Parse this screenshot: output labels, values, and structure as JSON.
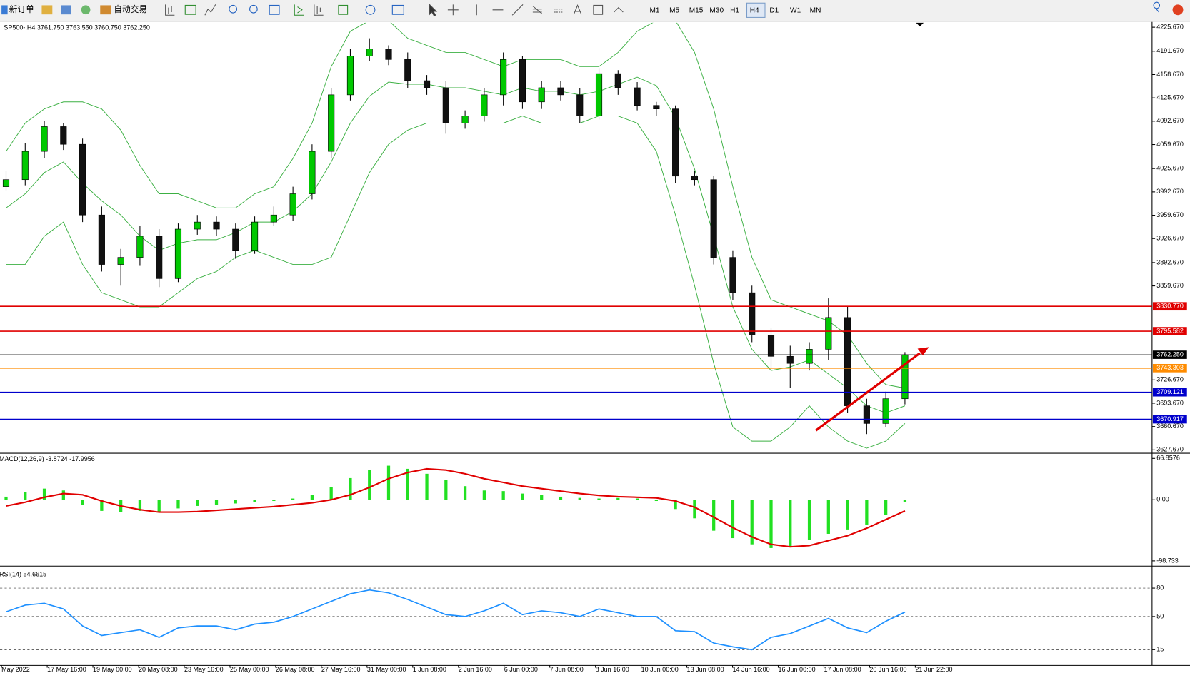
{
  "toolbar": {
    "new_order": "新订单",
    "auto_trading": "自动交易",
    "timeframes": [
      "M1",
      "M5",
      "M15",
      "M30",
      "H1",
      "H4",
      "D1",
      "W1",
      "MN"
    ],
    "active_timeframe": "H4"
  },
  "time_axis": {
    "labels": [
      "May 2022",
      "17 May 16:00",
      "19 May 00:00",
      "20 May 08:00",
      "23 May 16:00",
      "25 May 00:00",
      "26 May 08:00",
      "27 May 16:00",
      "31 May 00:00",
      "1 Jun 08:00",
      "2 Jun 16:00",
      "6 Jun 00:00",
      "7 Jun 08:00",
      "8 Jun 16:00",
      "10 Jun 00:00",
      "13 Jun 08:00",
      "14 Jun 16:00",
      "16 Jun 00:00",
      "17 Jun 08:00",
      "20 Jun 16:00",
      "21 Jun 22:00"
    ]
  },
  "chart_data": [
    {
      "type": "candlestick",
      "title": "SP500-,H4  3761.750 3763.550 3760.750 3762.250",
      "ylim": [
        3624,
        4232
      ],
      "grid": false,
      "up_color": "#00c800",
      "down_color": "#111111",
      "yticks": [
        {
          "value": 4225.67,
          "label": "4225.670"
        },
        {
          "value": 4191.67,
          "label": "4191.670"
        },
        {
          "value": 4158.67,
          "label": "4158.670"
        },
        {
          "value": 4125.67,
          "label": "4125.670"
        },
        {
          "value": 4092.67,
          "label": "4092.670"
        },
        {
          "value": 4059.67,
          "label": "4059.670"
        },
        {
          "value": 4025.67,
          "label": "4025.670"
        },
        {
          "value": 3992.67,
          "label": "3992.670"
        },
        {
          "value": 3959.67,
          "label": "3959.670"
        },
        {
          "value": 3926.67,
          "label": "3926.670"
        },
        {
          "value": 3892.67,
          "label": "3892.670"
        },
        {
          "value": 3859.67,
          "label": "3859.670"
        },
        {
          "value": 3726.67,
          "label": "3726.670"
        },
        {
          "value": 3693.67,
          "label": "3693.670"
        },
        {
          "value": 3660.67,
          "label": "3660.670"
        },
        {
          "value": 3627.67,
          "label": "3627.670"
        }
      ],
      "open": [
        4000,
        4010,
        4050,
        4085,
        4060,
        3960,
        3890,
        3900,
        3930,
        3870,
        3940,
        3950,
        3940,
        3910,
        3950,
        3960,
        3990,
        4050,
        4130,
        4185,
        4195,
        4180,
        4150,
        4140,
        4090,
        4100,
        4130,
        4180,
        4120,
        4140,
        4130,
        4100,
        4160,
        4140,
        4115,
        4110,
        4015,
        4010,
        3900,
        3850,
        3790,
        3760,
        3750,
        3770,
        3815,
        3690,
        3665,
        3700
      ],
      "high": [
        4022,
        4062,
        4093,
        4090,
        4068,
        3972,
        3912,
        3945,
        3940,
        3948,
        3960,
        3958,
        3948,
        3958,
        3972,
        4000,
        4060,
        4140,
        4195,
        4210,
        4200,
        4190,
        4158,
        4150,
        4108,
        4140,
        4190,
        4185,
        4150,
        4150,
        4140,
        4168,
        4165,
        4148,
        4120,
        4115,
        4022,
        4015,
        3910,
        3860,
        3800,
        3775,
        3780,
        3842,
        3830,
        3700,
        3710,
        3766
      ],
      "low": [
        3995,
        4002,
        4040,
        4052,
        3950,
        3880,
        3860,
        3888,
        3858,
        3865,
        3932,
        3930,
        3898,
        3905,
        3945,
        3952,
        3982,
        4040,
        4122,
        4178,
        4172,
        4140,
        4130,
        4075,
        4082,
        4092,
        4115,
        4110,
        4110,
        4122,
        4090,
        4095,
        4130,
        4108,
        4100,
        4005,
        4002,
        3890,
        3840,
        3780,
        3742,
        3715,
        3740,
        3755,
        3680,
        3650,
        3660,
        3692
      ],
      "close": [
        4010,
        4050,
        4085,
        4060,
        3960,
        3890,
        3900,
        3930,
        3870,
        3940,
        3950,
        3940,
        3910,
        3950,
        3960,
        3990,
        4050,
        4130,
        4185,
        4195,
        4180,
        4150,
        4140,
        4090,
        4100,
        4130,
        4180,
        4120,
        4140,
        4130,
        4100,
        4160,
        4140,
        4115,
        4110,
        4015,
        4010,
        3900,
        3850,
        3790,
        3760,
        3750,
        3770,
        3815,
        3690,
        3665,
        3700,
        3762.25
      ],
      "bollinger": {
        "color": "#3cb043",
        "upper": [
          4050,
          4090,
          4110,
          4120,
          4120,
          4110,
          4080,
          4030,
          3990,
          3990,
          3980,
          3970,
          3970,
          3990,
          4000,
          4040,
          4090,
          4170,
          4220,
          4235,
          4235,
          4210,
          4200,
          4190,
          4190,
          4180,
          4170,
          4180,
          4180,
          4180,
          4170,
          4170,
          4190,
          4220,
          4235,
          4235,
          4190,
          4110,
          4000,
          3900,
          3840,
          3830,
          3820,
          3810,
          3790,
          3750,
          3720,
          3715
        ],
        "middle": [
          3970,
          3990,
          4020,
          4035,
          4005,
          3980,
          3960,
          3930,
          3910,
          3920,
          3925,
          3925,
          3935,
          3950,
          3950,
          3965,
          3990,
          4035,
          4090,
          4128,
          4148,
          4145,
          4145,
          4140,
          4140,
          4135,
          4130,
          4140,
          4135,
          4135,
          4130,
          4135,
          4145,
          4155,
          4143,
          4098,
          4025,
          3930,
          3830,
          3770,
          3740,
          3745,
          3755,
          3735,
          3715,
          3690,
          3680,
          3690
        ],
        "lower": [
          3890,
          3890,
          3930,
          3950,
          3890,
          3850,
          3840,
          3830,
          3830,
          3850,
          3870,
          3880,
          3900,
          3910,
          3900,
          3890,
          3890,
          3900,
          3960,
          4020,
          4060,
          4080,
          4090,
          4090,
          4090,
          4090,
          4090,
          4100,
          4090,
          4090,
          4090,
          4100,
          4100,
          4090,
          4050,
          3960,
          3860,
          3750,
          3660,
          3640,
          3640,
          3660,
          3690,
          3660,
          3640,
          3630,
          3640,
          3665
        ]
      },
      "levels": [
        {
          "value": 3830.77,
          "label": "3830.770",
          "color": "#e00000"
        },
        {
          "value": 3795.582,
          "label": "3795.582",
          "color": "#e00000"
        },
        {
          "value": 3762.25,
          "label": "3762.250",
          "color": "#000000"
        },
        {
          "value": 3743.303,
          "label": "3743.303",
          "color": "#ff8c00"
        },
        {
          "value": 3709.121,
          "label": "3709.121",
          "color": "#0000cc"
        },
        {
          "value": 3670.917,
          "label": "3670.917",
          "color": "#0000cc"
        }
      ]
    },
    {
      "type": "macd",
      "title": "MACD(12,26,9) -3.8724 -17.9956",
      "ylim": [
        -106,
        74
      ],
      "grid": false,
      "yticks": [
        66.8576,
        {
          "value": 0,
          "label": "0.00"
        },
        -98.733
      ],
      "histogram": {
        "color": "#22e022",
        "values": [
          5,
          12,
          18,
          15,
          -8,
          -18,
          -20,
          -18,
          -20,
          -14,
          -10,
          -8,
          -6,
          -4,
          -2,
          2,
          8,
          20,
          35,
          48,
          55,
          50,
          42,
          32,
          22,
          15,
          14,
          10,
          8,
          5,
          3,
          2,
          3,
          2,
          -2,
          -15,
          -30,
          -50,
          -62,
          -72,
          -78,
          -76,
          -65,
          -55,
          -48,
          -40,
          -25,
          -3.8724
        ]
      },
      "signal": {
        "color": "#e00000",
        "values": [
          -10,
          -4,
          4,
          10,
          8,
          -2,
          -10,
          -16,
          -20,
          -20,
          -19,
          -17,
          -15,
          -13,
          -11,
          -8,
          -5,
          0,
          8,
          20,
          34,
          44,
          50,
          48,
          42,
          34,
          28,
          22,
          18,
          14,
          10,
          7,
          5,
          4,
          3,
          -2,
          -12,
          -28,
          -45,
          -60,
          -72,
          -76,
          -74,
          -66,
          -58,
          -46,
          -32,
          -17.9956
        ]
      }
    },
    {
      "type": "rsi",
      "title": "RSI(14) 54.6615",
      "ylim": [
        0,
        100
      ],
      "grid": true,
      "yticks": [
        80,
        50,
        15
      ],
      "color": "#1e90ff",
      "values": [
        55,
        62,
        64,
        58,
        40,
        30,
        33,
        36,
        28,
        38,
        40,
        40,
        36,
        42,
        44,
        50,
        58,
        66,
        74,
        78,
        75,
        68,
        60,
        52,
        50,
        56,
        64,
        52,
        56,
        54,
        50,
        58,
        54,
        50,
        50,
        35,
        34,
        22,
        18,
        15,
        28,
        32,
        40,
        48,
        38,
        33,
        45,
        54.6615
      ]
    }
  ]
}
